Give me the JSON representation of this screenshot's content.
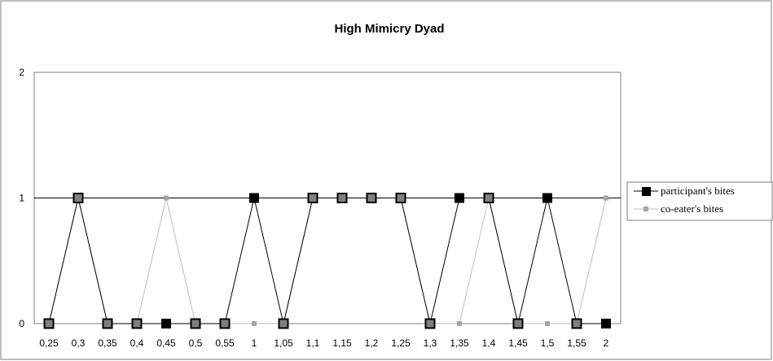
{
  "chart_data": {
    "type": "line",
    "title": "High Mimicry Dyad",
    "xlabel": "",
    "ylabel": "",
    "categories": [
      "0,25",
      "0,3",
      "0,35",
      "0,4",
      "0,45",
      "0,5",
      "0,55",
      "1",
      "1,05",
      "1,1",
      "1,15",
      "1,2",
      "1,25",
      "1,3",
      "1,35",
      "1,4",
      "1,45",
      "1,5",
      "1,55",
      "2"
    ],
    "ylim": [
      0,
      2
    ],
    "yticks": [
      0,
      1,
      2
    ],
    "grid": "horizontal major gridline at 1",
    "legend_position": "right",
    "series": [
      {
        "name": "participant's bites",
        "color": "#000000",
        "marker": "square",
        "values": [
          0,
          1,
          0,
          0,
          0,
          0,
          0,
          1,
          0,
          1,
          1,
          1,
          1,
          0,
          1,
          1,
          0,
          1,
          0,
          0
        ]
      },
      {
        "name": "co-eater's bites",
        "color": "#a6a6a6",
        "marker": "small-square",
        "values": [
          0,
          1,
          0,
          0,
          1,
          0,
          0,
          0,
          0,
          1,
          1,
          1,
          1,
          0,
          0,
          1,
          0,
          0,
          0,
          1
        ]
      }
    ]
  }
}
